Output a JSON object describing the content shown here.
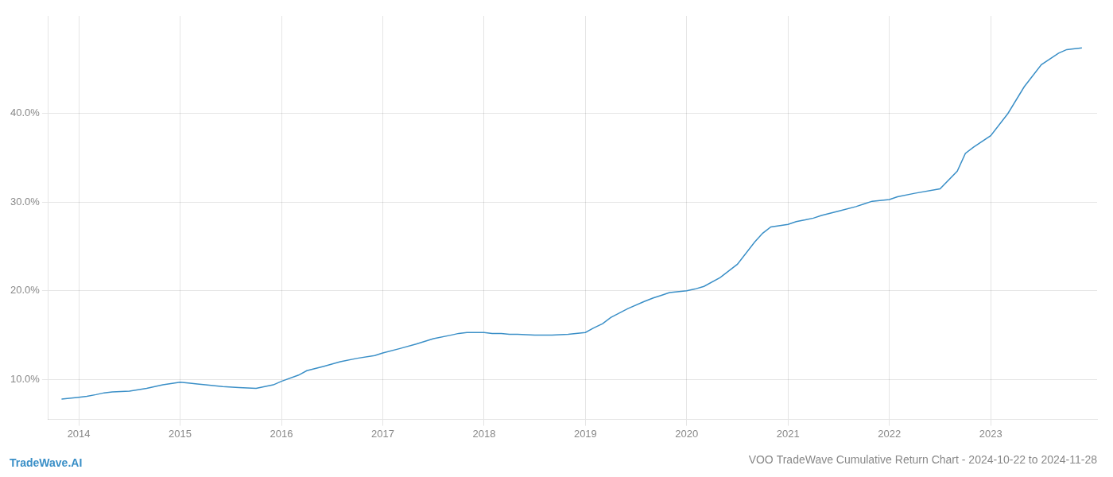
{
  "chart_data": {
    "type": "line",
    "title": "VOO TradeWave Cumulative Return Chart - 2024-10-22 to 2024-11-28",
    "annotations": [
      {
        "text": "TradeWave.AI",
        "color": "#3a8fc7"
      }
    ],
    "x": [
      2013.83,
      2014.0,
      2014.08,
      2014.17,
      2014.25,
      2014.33,
      2014.5,
      2014.67,
      2014.75,
      2014.83,
      2015.0,
      2015.08,
      2015.17,
      2015.25,
      2015.42,
      2015.58,
      2015.75,
      2015.92,
      2016.0,
      2016.17,
      2016.25,
      2016.42,
      2016.58,
      2016.75,
      2016.92,
      2017.0,
      2017.17,
      2017.33,
      2017.5,
      2017.67,
      2017.75,
      2017.83,
      2018.0,
      2018.08,
      2018.17,
      2018.25,
      2018.33,
      2018.5,
      2018.67,
      2018.83,
      2019.0,
      2019.08,
      2019.17,
      2019.25,
      2019.42,
      2019.58,
      2019.67,
      2019.75,
      2019.83,
      2020.0,
      2020.08,
      2020.17,
      2020.33,
      2020.5,
      2020.67,
      2020.75,
      2020.83,
      2021.0,
      2021.08,
      2021.17,
      2021.25,
      2021.33,
      2021.5,
      2021.67,
      2021.75,
      2021.83,
      2022.0,
      2022.08,
      2022.25,
      2022.5,
      2022.67,
      2022.75,
      2022.83,
      2023.0,
      2023.17,
      2023.33,
      2023.5,
      2023.67,
      2023.75,
      2023.83,
      2023.9
    ],
    "values": [
      7.8,
      8.0,
      8.1,
      8.3,
      8.5,
      8.6,
      8.7,
      9.0,
      9.2,
      9.4,
      9.7,
      9.6,
      9.5,
      9.4,
      9.2,
      9.1,
      9.0,
      9.4,
      9.8,
      10.5,
      11.0,
      11.5,
      12.0,
      12.4,
      12.7,
      13.0,
      13.5,
      14.0,
      14.6,
      15.0,
      15.2,
      15.3,
      15.3,
      15.2,
      15.2,
      15.1,
      15.1,
      15.0,
      15.0,
      15.1,
      15.3,
      15.8,
      16.3,
      17.0,
      18.0,
      18.8,
      19.2,
      19.5,
      19.8,
      20.0,
      20.2,
      20.5,
      21.5,
      23.0,
      25.5,
      26.5,
      27.2,
      27.5,
      27.8,
      28.0,
      28.2,
      28.5,
      29.0,
      29.5,
      29.8,
      30.1,
      30.3,
      30.6,
      31.0,
      31.5,
      33.5,
      35.5,
      36.2,
      37.5,
      40.0,
      43.0,
      45.5,
      46.8,
      47.2,
      47.3,
      47.4
    ],
    "color": "#3a8fc7",
    "xlim": [
      2013.7,
      2024.05
    ],
    "ylim": [
      5.5,
      51.0
    ],
    "xticks": [
      2014,
      2015,
      2016,
      2017,
      2018,
      2019,
      2020,
      2021,
      2022,
      2023
    ],
    "yticks": [
      {
        "value": 10.0,
        "label": "10.0%"
      },
      {
        "value": 20.0,
        "label": "20.0%"
      },
      {
        "value": 30.0,
        "label": "30.0%"
      },
      {
        "value": 40.0,
        "label": "40.0%"
      }
    ],
    "grid": true
  }
}
